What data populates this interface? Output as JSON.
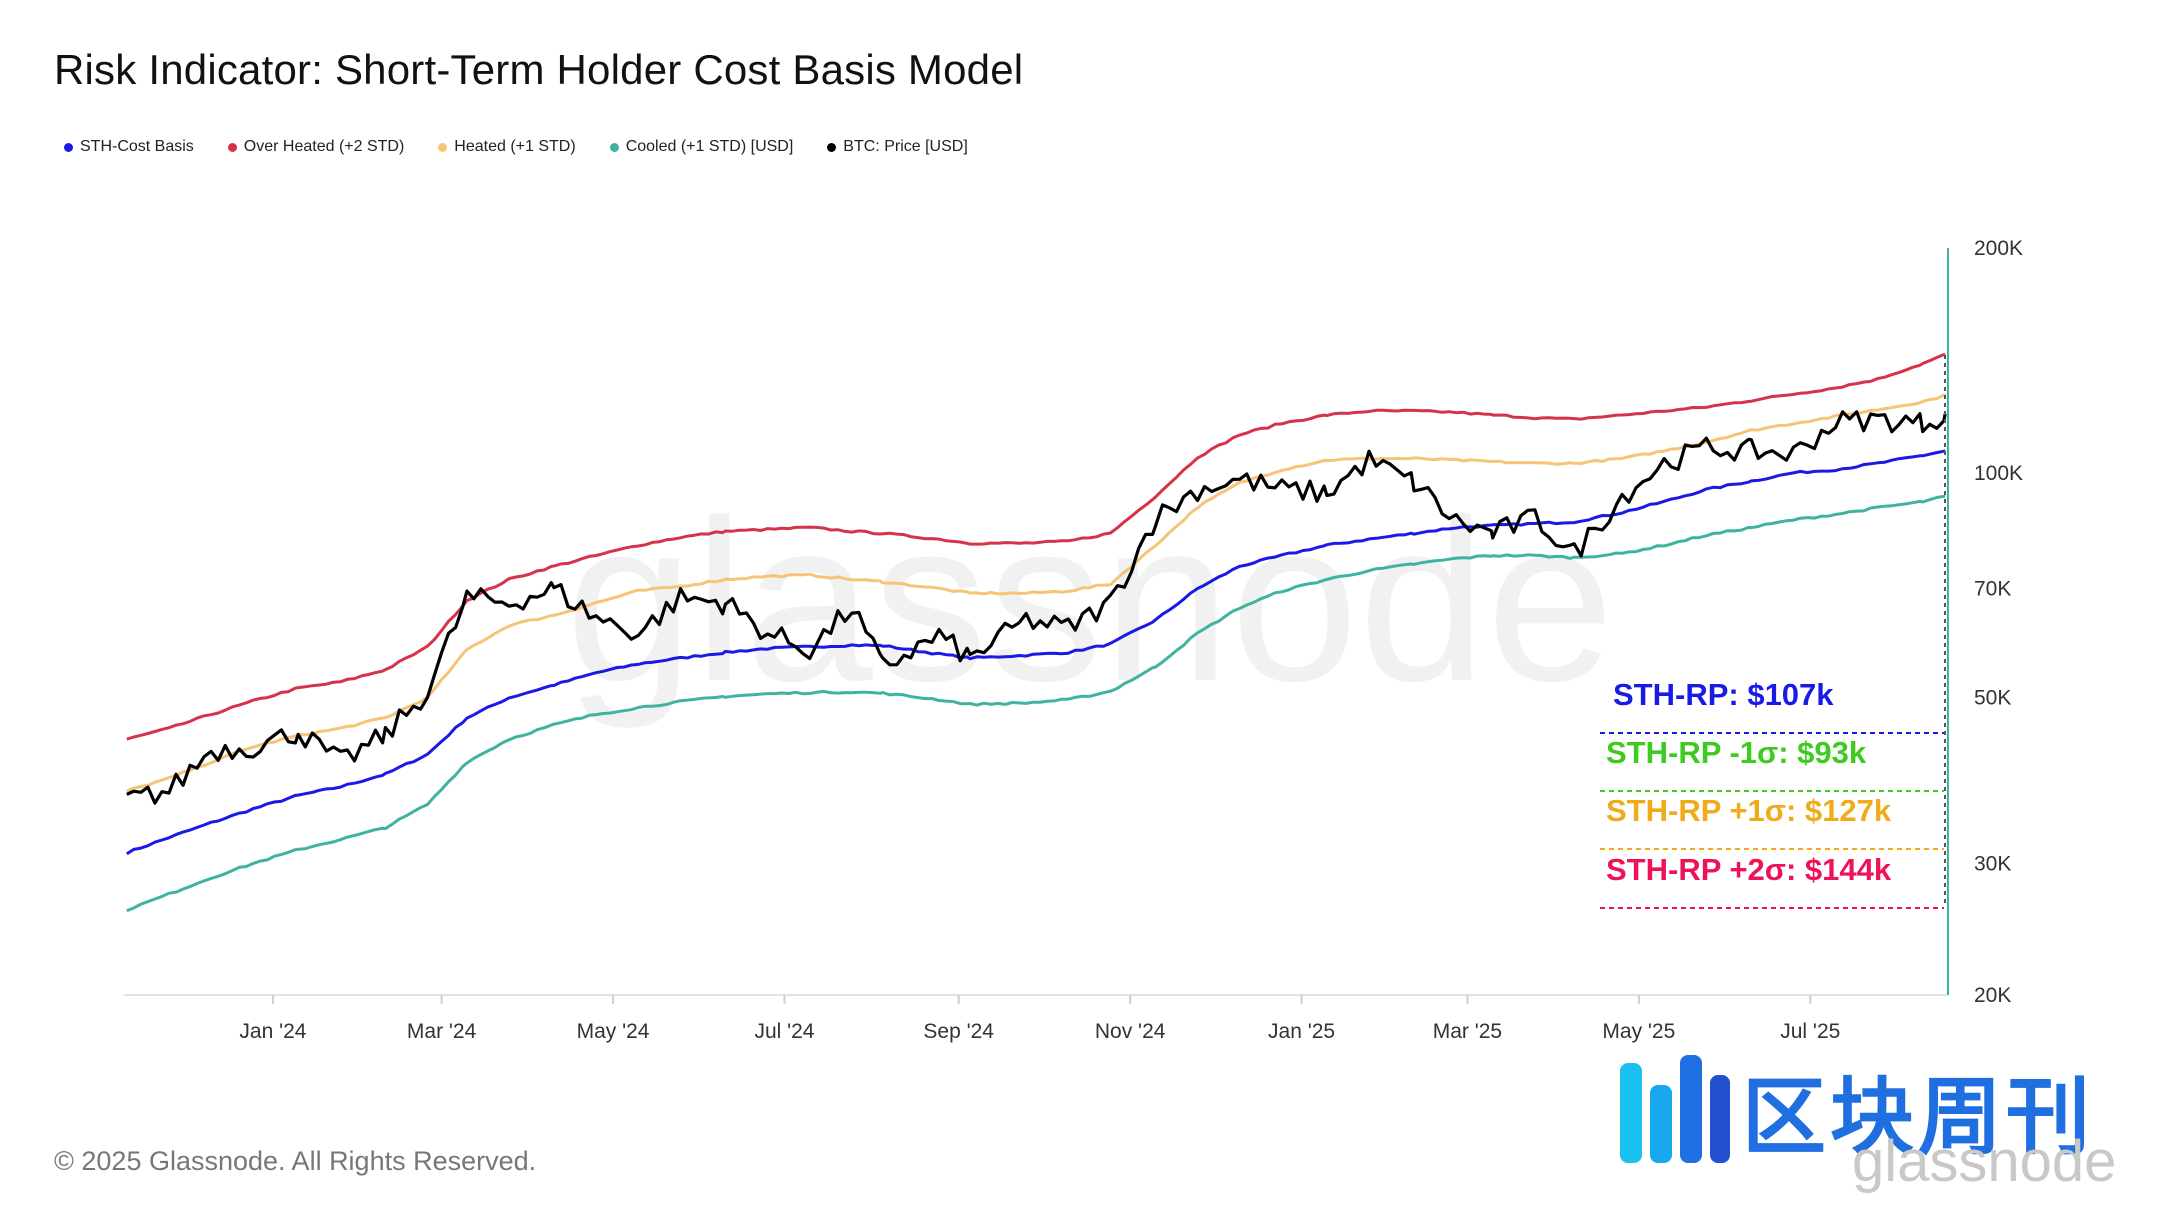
{
  "title": "Risk Indicator: Short-Term Holder Cost Basis Model",
  "footer": "© 2025 Glassnode. All Rights Reserved.",
  "watermark": "glassnode",
  "logo": {
    "cn_text": "区块周刊",
    "en_text": "glassnode",
    "icon": "blockweekly-logo-icon"
  },
  "chart_data": {
    "type": "line",
    "title": "Risk Indicator: Short-Term Holder Cost Basis Model",
    "y_scale": "log",
    "ylim": [
      20000,
      200000
    ],
    "y_ticks": [
      {
        "value": 200000,
        "label": "200K"
      },
      {
        "value": 100000,
        "label": "100K"
      },
      {
        "value": 70000,
        "label": "70K"
      },
      {
        "value": 50000,
        "label": "50K"
      },
      {
        "value": 30000,
        "label": "30K"
      },
      {
        "value": 20000,
        "label": "20K"
      }
    ],
    "xlim": [
      "2023-11-09",
      "2025-08-19"
    ],
    "x_ticks": [
      {
        "date": "2024-01-01",
        "label": "Jan '24"
      },
      {
        "date": "2024-03-01",
        "label": "Mar '24"
      },
      {
        "date": "2024-05-01",
        "label": "May '24"
      },
      {
        "date": "2024-07-01",
        "label": "Jul '24"
      },
      {
        "date": "2024-09-01",
        "label": "Sep '24"
      },
      {
        "date": "2024-11-01",
        "label": "Nov '24"
      },
      {
        "date": "2025-01-01",
        "label": "Jan '25"
      },
      {
        "date": "2025-03-01",
        "label": "Mar '25"
      },
      {
        "date": "2025-05-01",
        "label": "May '25"
      },
      {
        "date": "2025-07-01",
        "label": "Jul '25"
      }
    ],
    "grid": false,
    "legend_position": "top-left",
    "x": [
      "2023-11-10",
      "2023-11-25",
      "2023-12-10",
      "2023-12-25",
      "2024-01-10",
      "2024-01-25",
      "2024-02-10",
      "2024-02-25",
      "2024-03-10",
      "2024-03-25",
      "2024-04-10",
      "2024-04-25",
      "2024-05-10",
      "2024-05-25",
      "2024-06-10",
      "2024-06-25",
      "2024-07-10",
      "2024-07-25",
      "2024-08-05",
      "2024-08-25",
      "2024-09-05",
      "2024-09-25",
      "2024-10-10",
      "2024-10-25",
      "2024-11-10",
      "2024-11-25",
      "2024-12-10",
      "2024-12-25",
      "2025-01-10",
      "2025-01-25",
      "2025-02-10",
      "2025-02-25",
      "2025-03-10",
      "2025-03-25",
      "2025-04-08",
      "2025-04-25",
      "2025-05-10",
      "2025-05-25",
      "2025-06-10",
      "2025-06-25",
      "2025-07-10",
      "2025-07-25",
      "2025-08-10",
      "2025-08-18"
    ],
    "series": [
      {
        "name": "STH-Cost Basis",
        "color": "#1a1ae6",
        "values": [
          31000,
          32500,
          34000,
          35500,
          37000,
          38000,
          39500,
          42000,
          47000,
          50000,
          52000,
          54000,
          55500,
          56500,
          57500,
          58200,
          58500,
          58800,
          58700,
          57200,
          56500,
          57000,
          57500,
          59000,
          63500,
          70000,
          75000,
          77500,
          80000,
          81500,
          83000,
          84500,
          85000,
          85500,
          86000,
          88500,
          91500,
          95000,
          97500,
          100000,
          101000,
          103000,
          105500,
          107000
        ]
      },
      {
        "name": "Over Heated (+2 STD)",
        "color": "#d6334a",
        "values": [
          44000,
          45500,
          47500,
          49500,
          51500,
          52500,
          54500,
          58500,
          67500,
          72000,
          75000,
          77500,
          80000,
          82000,
          83500,
          84000,
          84500,
          83500,
          83000,
          81500,
          80500,
          80500,
          81000,
          83000,
          93000,
          105000,
          112500,
          116500,
          119500,
          121000,
          121000,
          120500,
          119500,
          118500,
          118000,
          119500,
          121000,
          122500,
          125000,
          127500,
          130000,
          133500,
          140000,
          144000
        ]
      },
      {
        "name": "Heated (+1 STD)",
        "color": "#f5c477",
        "values": [
          37500,
          39000,
          41000,
          43000,
          44500,
          45500,
          47000,
          50000,
          58000,
          62500,
          64500,
          67000,
          69500,
          70500,
          72000,
          72700,
          73000,
          72000,
          71500,
          70000,
          69000,
          69000,
          69500,
          71000,
          80000,
          90000,
          97000,
          101000,
          104000,
          104500,
          104500,
          104000,
          103500,
          103000,
          103000,
          104500,
          107000,
          110000,
          114000,
          116500,
          119000,
          121500,
          124500,
          127000
        ]
      },
      {
        "name": "Cooled (+1 STD) [USD]",
        "color": "#3fb3a0",
        "values": [
          26000,
          27300,
          28700,
          30000,
          31300,
          32300,
          33500,
          36000,
          41000,
          44000,
          46000,
          47500,
          48500,
          49400,
          50200,
          50600,
          50800,
          50900,
          50700,
          49700,
          49000,
          49200,
          49700,
          51000,
          55000,
          61000,
          66000,
          69500,
          72000,
          74000,
          75500,
          76800,
          77500,
          77500,
          77000,
          78000,
          80000,
          82500,
          84500,
          86500,
          88000,
          89800,
          91500,
          93000
        ]
      },
      {
        "name": "BTC: Price [USD]",
        "color": "#000000",
        "values": [
          36500,
          37500,
          42500,
          43000,
          45000,
          41000,
          44500,
          51000,
          68000,
          67000,
          70000,
          64000,
          61000,
          68000,
          67000,
          61000,
          58000,
          66000,
          55000,
          60500,
          56500,
          63500,
          62000,
          67000,
          87000,
          95000,
          98000,
          95000,
          94000,
          104000,
          97000,
          86000,
          83000,
          87000,
          78000,
          93000,
          103000,
          108000,
          107000,
          106000,
          117000,
          118000,
          116500,
          120000
        ]
      }
    ],
    "annotations": [
      {
        "text": "STH-RP: $107k",
        "color": "#1a1ae6"
      },
      {
        "text": "STH-RP -1σ: $93k",
        "color": "#3dcb1f"
      },
      {
        "text": "STH-RP +1σ: $127k",
        "color": "#f0ab1a"
      },
      {
        "text": "STH-RP +2σ: $144k",
        "color": "#ee1258"
      }
    ]
  }
}
